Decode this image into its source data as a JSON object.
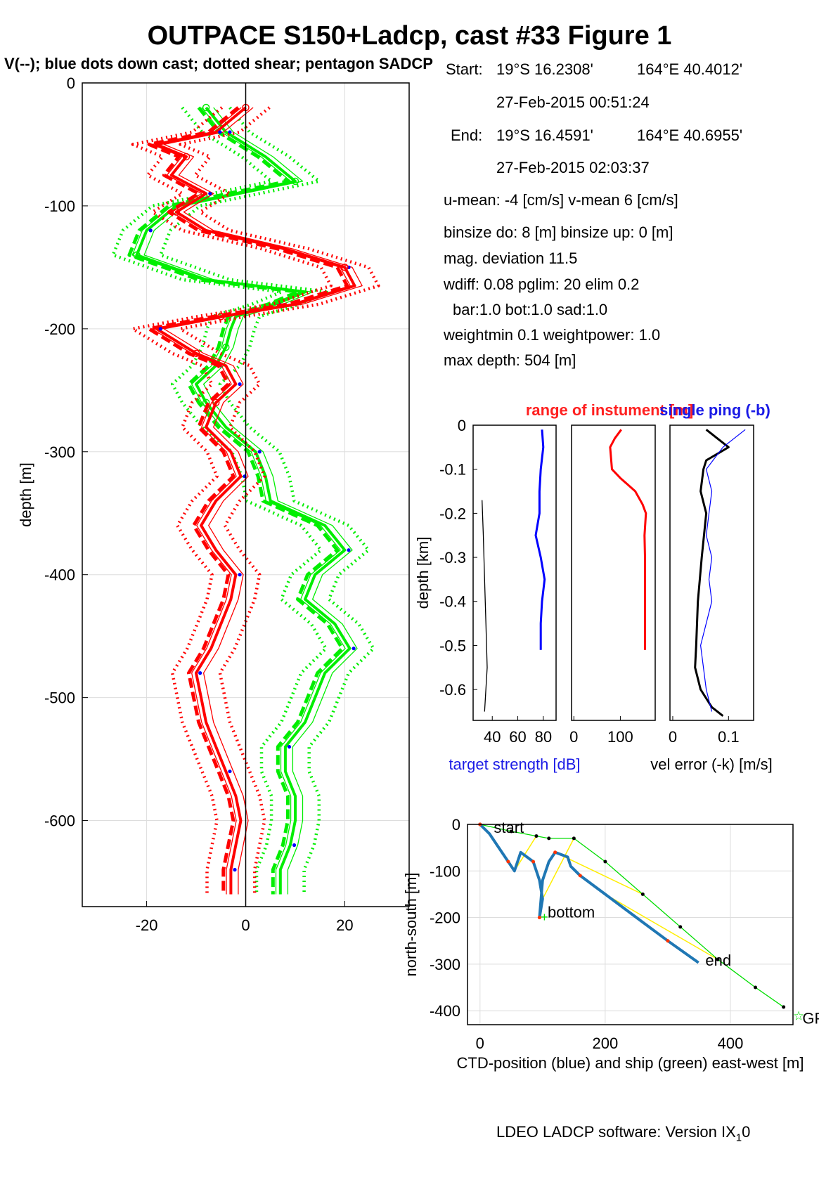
{
  "title": "OUTPACE S150+Ladcp, cast #33  Figure 1",
  "subtitle": "V(--); blue dots down cast; dotted shear; pentagon SADCP",
  "info": {
    "start_label": "Start:",
    "start_lat": "19°S 16.2308'",
    "start_lon": "164°E 40.4012'",
    "start_time": "27-Feb-2015 00:51:24",
    "end_label": "End:",
    "end_lat": "19°S 16.4591'",
    "end_lon": "164°E 40.6955'",
    "end_time": "27-Feb-2015 02:03:37",
    "means": "u-mean:  -4 [cm/s]    v-mean   6 [cm/s]",
    "binsize": "binsize do: 8 [m]  binsize up:  0 [m]",
    "magdev": "mag. deviation 11.5",
    "wdiff": "wdiff: 0.08  pglim: 20  elim 0.2",
    "bar": "bar:1.0 bot:1.0 sad:1.0",
    "weight": "weightmin 0.1  weightpower: 1.0",
    "maxdepth": "max depth: 504 [m]"
  },
  "footer": {
    "software": "LDEO LADCP software: Version IX",
    "version_sub": "1",
    "version_tail": "0"
  },
  "colors": {
    "u": "#ff0000",
    "v": "#00ee00",
    "down_dots": "#0000ff",
    "ctd": "#1f77b4",
    "ship": "#00dd00",
    "link": "#ffee00"
  },
  "chart_data": [
    {
      "type": "line",
      "name": "velocity-profile",
      "ylabel": "depth [m]",
      "xlim": [
        -33,
        33
      ],
      "ylim": [
        -670,
        0
      ],
      "xticks": [
        -20,
        0,
        20
      ],
      "yticks": [
        0,
        -100,
        -200,
        -300,
        -400,
        -500,
        -600
      ],
      "grid": true,
      "series": [
        {
          "role": "u",
          "depth": [
            -20,
            -40,
            -50,
            -60,
            -75,
            -90,
            -105,
            -120,
            -135,
            -150,
            -165,
            -180,
            -190,
            -200,
            -210,
            -220,
            -230,
            -245,
            -260,
            -280,
            -300,
            -320,
            -340,
            -360,
            -380,
            -400,
            -420,
            -440,
            -460,
            -480,
            -500,
            -520,
            -540,
            -560,
            -580,
            -600,
            -620,
            -640,
            -660
          ],
          "u": [
            0,
            -6,
            -18,
            -12,
            -15,
            -8,
            -14,
            -8,
            8,
            20,
            22,
            10,
            -5,
            -18,
            -14,
            -10,
            -4,
            -2,
            -6,
            -8,
            -3,
            -1,
            -6,
            -9,
            -6,
            -2,
            -3,
            -5,
            -7,
            -10,
            -9,
            -8,
            -6,
            -4,
            -2,
            -1,
            -2,
            -3,
            -3
          ]
        },
        {
          "role": "v",
          "depth": [
            -20,
            -40,
            -60,
            -80,
            -100,
            -120,
            -140,
            -160,
            -170,
            -180,
            -190,
            -200,
            -215,
            -230,
            -245,
            -260,
            -280,
            -300,
            -320,
            -340,
            -360,
            -380,
            -400,
            -420,
            -440,
            -460,
            -480,
            -500,
            -520,
            -540,
            -560,
            -580,
            -600,
            -620,
            -640,
            -660
          ],
          "v": [
            -8,
            -4,
            4,
            10,
            -14,
            -20,
            -22,
            -8,
            12,
            6,
            -2,
            -3,
            -4,
            -6,
            -10,
            -8,
            -4,
            2,
            4,
            5,
            16,
            20,
            14,
            12,
            18,
            21,
            16,
            14,
            12,
            8,
            8,
            10,
            10,
            9,
            7,
            7
          ]
        }
      ]
    },
    {
      "type": "line",
      "name": "target-strength",
      "ylabel": "depth [km]",
      "xlabel": "target strength [dB]",
      "xlim": [
        25,
        90
      ],
      "ylim": [
        -0.67,
        0
      ],
      "xticks": [
        40,
        60,
        80
      ],
      "yticks": [
        0,
        -0.1,
        -0.2,
        -0.3,
        -0.4,
        -0.5,
        -0.6
      ],
      "series": [
        {
          "role": "target-strength",
          "depth": [
            -0.01,
            -0.05,
            -0.1,
            -0.15,
            -0.2,
            -0.25,
            -0.3,
            -0.35,
            -0.4,
            -0.45,
            -0.51
          ],
          "x": [
            79,
            80,
            78,
            77,
            77,
            74,
            78,
            81,
            79,
            78,
            78
          ]
        },
        {
          "role": "profile-black",
          "depth": [
            -0.17,
            -0.25,
            -0.35,
            -0.45,
            -0.55,
            -0.65
          ],
          "x": [
            32,
            33,
            34,
            35,
            36,
            34
          ]
        }
      ]
    },
    {
      "type": "line",
      "name": "instrument-range",
      "title": "range of instument [m]",
      "xlim": [
        -5,
        175
      ],
      "ylim": [
        -0.67,
        0
      ],
      "xticks": [
        0,
        100
      ],
      "series": [
        {
          "role": "range",
          "depth": [
            -0.01,
            -0.03,
            -0.05,
            -0.1,
            -0.12,
            -0.15,
            -0.18,
            -0.2,
            -0.25,
            -0.3,
            -0.4,
            -0.51
          ],
          "x": [
            102,
            88,
            78,
            82,
            100,
            132,
            148,
            155,
            152,
            153,
            153,
            153
          ]
        }
      ]
    },
    {
      "type": "line",
      "name": "velocity-error",
      "title": "single ping (-b)",
      "xlabel": "vel error (-k) [m/s]",
      "xlim": [
        -0.005,
        0.145
      ],
      "ylim": [
        -0.67,
        0
      ],
      "xticks": [
        0,
        0.1
      ],
      "series": [
        {
          "role": "vel-error-k",
          "depth": [
            -0.01,
            -0.05,
            -0.08,
            -0.1,
            -0.15,
            -0.2,
            -0.3,
            -0.4,
            -0.5,
            -0.55,
            -0.6,
            -0.64,
            -0.66
          ],
          "x": [
            0.06,
            0.1,
            0.06,
            0.055,
            0.05,
            0.06,
            0.052,
            0.045,
            0.042,
            0.04,
            0.05,
            0.07,
            0.09
          ]
        },
        {
          "role": "single-ping-b",
          "depth": [
            -0.01,
            -0.05,
            -0.1,
            -0.15,
            -0.2,
            -0.25,
            -0.3,
            -0.35,
            -0.4,
            -0.5,
            -0.6,
            -0.65
          ],
          "x": [
            0.13,
            0.09,
            0.06,
            0.07,
            0.065,
            0.06,
            0.07,
            0.065,
            0.07,
            0.05,
            0.06,
            0.07
          ]
        }
      ]
    },
    {
      "type": "scatter",
      "name": "ctd-ship-track",
      "xlabel": "CTD-position (blue) and ship (green) east-west [m]",
      "ylabel": "north-south [m]",
      "xlim": [
        -20,
        500
      ],
      "ylim": [
        -430,
        0
      ],
      "xticks": [
        0,
        200,
        400
      ],
      "yticks": [
        0,
        -100,
        -200,
        -300,
        -400
      ],
      "labels": [
        "start",
        "bottom",
        "end",
        "GPS-end"
      ],
      "ctd": {
        "x": [
          0,
          15,
          30,
          45,
          55,
          65,
          85,
          95,
          100,
          95,
          100,
          110,
          120,
          140,
          145,
          160,
          200,
          250,
          300,
          349
        ],
        "y": [
          0,
          -20,
          -50,
          -80,
          -100,
          -60,
          -80,
          -120,
          -160,
          -200,
          -120,
          -80,
          -60,
          -70,
          -90,
          -110,
          -150,
          -200,
          -250,
          -297
        ]
      },
      "ship": {
        "x": [
          0,
          50,
          90,
          110,
          150,
          200,
          260,
          320,
          380,
          440,
          485
        ],
        "y": [
          0,
          -15,
          -25,
          -30,
          -30,
          -80,
          -150,
          -220,
          -290,
          -350,
          -392
        ]
      }
    }
  ]
}
